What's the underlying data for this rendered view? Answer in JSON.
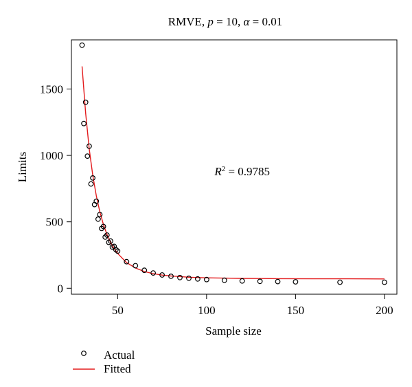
{
  "chart_data": {
    "type": "scatter",
    "title": {
      "prefix": "RMVE, ",
      "p_symbol": "p",
      "p_value": " = 10, ",
      "alpha_symbol": "α",
      "alpha_value": " = 0.01"
    },
    "xlabel": "Sample size",
    "ylabel": "Limits",
    "xlim": [
      24,
      207
    ],
    "ylim": [
      -45,
      1870
    ],
    "xticks": [
      50,
      100,
      150,
      200
    ],
    "yticks": [
      0,
      500,
      1000,
      1500
    ],
    "grid": false,
    "annotation": {
      "r_symbol": "R",
      "exponent": "2",
      "text": " = 0.9785",
      "x": 120,
      "y": 850
    },
    "legend": {
      "placement": "bottom-left",
      "entries": [
        "Actual",
        "Fitted"
      ]
    },
    "series": [
      {
        "name": "Actual",
        "kind": "points",
        "color": "#000000",
        "points": [
          [
            30,
            1830
          ],
          [
            31,
            1240
          ],
          [
            32,
            1400
          ],
          [
            33,
            995
          ],
          [
            34,
            1070
          ],
          [
            35,
            785
          ],
          [
            36,
            830
          ],
          [
            37,
            630
          ],
          [
            38,
            655
          ],
          [
            39,
            520
          ],
          [
            40,
            555
          ],
          [
            41,
            450
          ],
          [
            42,
            465
          ],
          [
            43,
            385
          ],
          [
            44,
            400
          ],
          [
            45,
            345
          ],
          [
            46,
            355
          ],
          [
            47,
            310
          ],
          [
            48,
            315
          ],
          [
            49,
            290
          ],
          [
            50,
            280
          ],
          [
            55,
            200
          ],
          [
            60,
            170
          ],
          [
            65,
            135
          ],
          [
            70,
            115
          ],
          [
            75,
            100
          ],
          [
            80,
            90
          ],
          [
            85,
            80
          ],
          [
            90,
            75
          ],
          [
            95,
            70
          ],
          [
            100,
            65
          ],
          [
            110,
            60
          ],
          [
            120,
            55
          ],
          [
            130,
            52
          ],
          [
            140,
            50
          ],
          [
            150,
            48
          ],
          [
            175,
            45
          ],
          [
            200,
            45
          ]
        ]
      },
      {
        "name": "Fitted",
        "kind": "line",
        "color": "#e31a1c",
        "points": [
          [
            30,
            1670
          ],
          [
            32,
            1320
          ],
          [
            34,
            1050
          ],
          [
            36,
            850
          ],
          [
            38,
            695
          ],
          [
            40,
            575
          ],
          [
            42,
            480
          ],
          [
            44,
            405
          ],
          [
            46,
            345
          ],
          [
            48,
            300
          ],
          [
            50,
            262
          ],
          [
            55,
            193
          ],
          [
            60,
            152
          ],
          [
            65,
            126
          ],
          [
            70,
            110
          ],
          [
            75,
            99
          ],
          [
            80,
            92
          ],
          [
            90,
            83
          ],
          [
            100,
            78
          ],
          [
            110,
            76
          ],
          [
            120,
            74
          ],
          [
            140,
            72
          ],
          [
            160,
            71
          ],
          [
            180,
            71
          ],
          [
            200,
            70
          ]
        ]
      }
    ]
  }
}
